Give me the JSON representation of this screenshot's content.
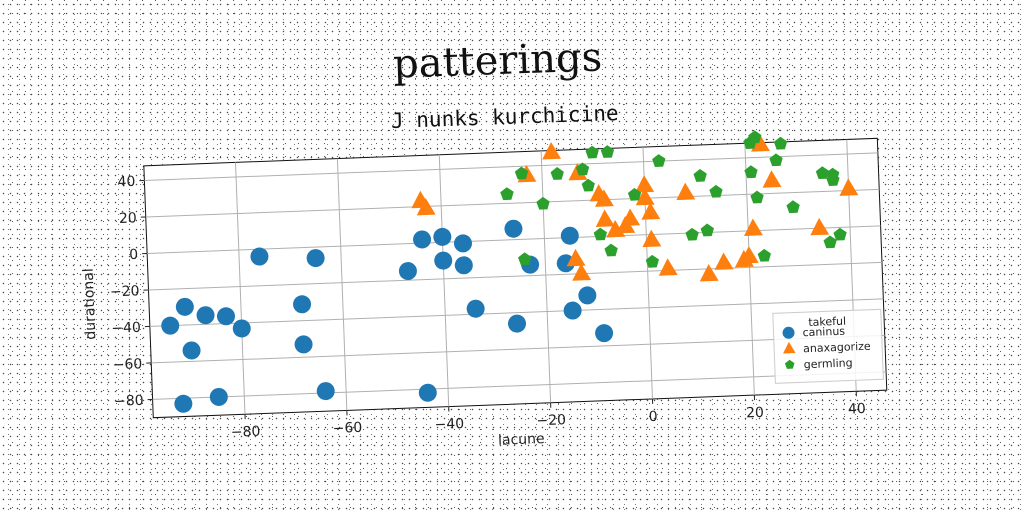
{
  "chart_data": {
    "type": "scatter",
    "title": "patterings",
    "subtitle": "J nunks kurchicine",
    "xlabel": "lacune",
    "ylabel": "durational",
    "xlim": [
      -98,
      46
    ],
    "ylim": [
      -90,
      48
    ],
    "xticks": [
      -80,
      -60,
      -40,
      -20,
      0,
      20,
      40
    ],
    "yticks": [
      40,
      20,
      0,
      -20,
      -40,
      -60,
      -80
    ],
    "grid": true,
    "legend": {
      "title": "takeful",
      "placement": "lower-right"
    },
    "series": [
      {
        "name": "caninus",
        "marker": "circle",
        "color": "#1f77b4",
        "points": [
          [
            -94,
            -40
          ],
          [
            -91,
            -30
          ],
          [
            -90,
            -54
          ],
          [
            -87,
            -35
          ],
          [
            -83,
            -36
          ],
          [
            -80,
            -43
          ],
          [
            -76,
            -4
          ],
          [
            -68,
            -31
          ],
          [
            -68,
            -53
          ],
          [
            -65,
            -6
          ],
          [
            -64,
            -79
          ],
          [
            -92,
            -83
          ],
          [
            -85,
            -80
          ],
          [
            -47,
            -15
          ],
          [
            -44,
            2
          ],
          [
            -44,
            -82
          ],
          [
            -40,
            3
          ],
          [
            -40,
            -10
          ],
          [
            -36,
            -1
          ],
          [
            -36,
            -13
          ],
          [
            -34,
            -37
          ],
          [
            -26,
            6
          ],
          [
            -26,
            -46
          ],
          [
            -23,
            -14
          ],
          [
            -16,
            -14
          ],
          [
            -15,
            1
          ],
          [
            -15,
            -40
          ],
          [
            -12,
            -32
          ],
          [
            -9,
            -53
          ]
        ]
      },
      {
        "name": "anaxagorize",
        "marker": "triangle",
        "color": "#ff7f0e",
        "points": [
          [
            -44,
            23
          ],
          [
            -43,
            19
          ],
          [
            -23,
            35
          ],
          [
            -18,
            47
          ],
          [
            -14,
            -12
          ],
          [
            -13,
            -20
          ],
          [
            -13,
            35
          ],
          [
            -9,
            23
          ],
          [
            -8,
            20
          ],
          [
            -8,
            9
          ],
          [
            -6,
            3
          ],
          [
            -4,
            5
          ],
          [
            -3,
            9
          ],
          [
            0,
            27
          ],
          [
            0,
            20
          ],
          [
            1,
            12
          ],
          [
            1,
            -3
          ],
          [
            4,
            -19
          ],
          [
            8,
            22
          ],
          [
            12,
            -23
          ],
          [
            15,
            -17
          ],
          [
            19,
            -16
          ],
          [
            20,
            -14
          ],
          [
            21,
            1
          ],
          [
            23,
            47
          ],
          [
            25,
            27
          ],
          [
            34,
            0
          ],
          [
            40,
            21
          ]
        ]
      },
      {
        "name": "germling",
        "marker": "pentagon",
        "color": "#2ca02c",
        "points": [
          [
            -27,
            25
          ],
          [
            -24,
            36
          ],
          [
            -24,
            -11
          ],
          [
            -20,
            19
          ],
          [
            -17,
            35
          ],
          [
            -12,
            37
          ],
          [
            -11,
            28
          ],
          [
            -10,
            46
          ],
          [
            -9,
            1
          ],
          [
            -7,
            46
          ],
          [
            -7,
            -8
          ],
          [
            -2,
            22
          ],
          [
            1,
            -15
          ],
          [
            3,
            40
          ],
          [
            9,
            -1
          ],
          [
            11,
            31
          ],
          [
            12,
            1
          ],
          [
            14,
            22
          ],
          [
            21,
            48
          ],
          [
            22,
            18
          ],
          [
            21,
            32
          ],
          [
            22,
            51
          ],
          [
            23,
            -14
          ],
          [
            26,
            38
          ],
          [
            27,
            47
          ],
          [
            29,
            12
          ],
          [
            35,
            30
          ],
          [
            36,
            -8
          ],
          [
            37,
            26
          ],
          [
            38,
            -4
          ],
          [
            37,
            29
          ]
        ]
      }
    ]
  }
}
